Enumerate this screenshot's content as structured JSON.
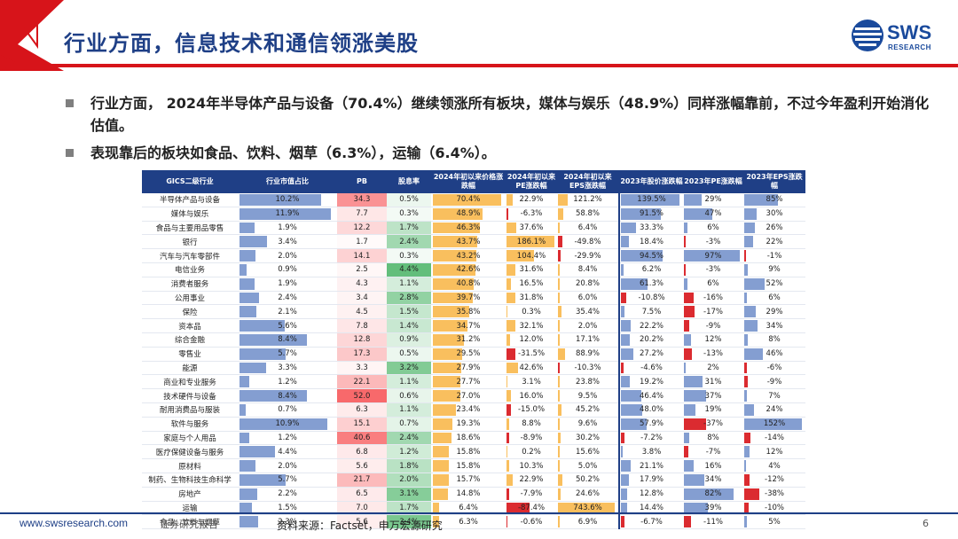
{
  "header": {
    "title": "行业方面，信息技术和通信领涨美股",
    "logo_text": "SWS",
    "logo_sub": "RESEARCH"
  },
  "bullets": [
    "行业方面， 2024年半导体产品与设备（70.4%）继续领涨所有板块，媒体与娱乐（48.9%）同样涨幅靠前，不过今年盈利开始消化估值。",
    "表现靠后的板块如食品、饮料、烟草（6.3%），运输（6.4%）。"
  ],
  "table": {
    "headers": [
      "GICS二级行业",
      "行业市值占比",
      "PB",
      "股息率",
      "2024年初以来价格涨跌幅",
      "2024年初以来PE涨跌幅",
      "2024年初以来EPS涨跌幅",
      "2023年股价涨跌幅",
      "2023年PE涨跌幅",
      "2023年EPS涨跌幅"
    ],
    "rows": [
      [
        "半导体产品与设备",
        "10.2%",
        "34.3",
        "0.5%",
        "70.4%",
        "22.9%",
        "121.2%",
        "139.5%",
        "29%",
        "85%"
      ],
      [
        "媒体与娱乐",
        "11.9%",
        "7.7",
        "0.3%",
        "48.9%",
        "-6.3%",
        "58.8%",
        "91.5%",
        "47%",
        "30%"
      ],
      [
        "食品与主要用品零售",
        "1.9%",
        "12.2",
        "1.7%",
        "46.3%",
        "37.6%",
        "6.4%",
        "33.3%",
        "6%",
        "26%"
      ],
      [
        "银行",
        "3.4%",
        "1.7",
        "2.4%",
        "43.7%",
        "186.1%",
        "-49.8%",
        "18.4%",
        "-3%",
        "22%"
      ],
      [
        "汽车与汽车零部件",
        "2.0%",
        "14.1",
        "0.3%",
        "43.2%",
        "104.4%",
        "-29.9%",
        "94.5%",
        "97%",
        "-1%"
      ],
      [
        "电信业务",
        "0.9%",
        "2.5",
        "4.4%",
        "42.6%",
        "31.6%",
        "8.4%",
        "6.2%",
        "-3%",
        "9%"
      ],
      [
        "消费者服务",
        "1.9%",
        "4.3",
        "1.1%",
        "40.8%",
        "16.5%",
        "20.8%",
        "61.3%",
        "6%",
        "52%"
      ],
      [
        "公用事业",
        "2.4%",
        "3.4",
        "2.8%",
        "39.7%",
        "31.8%",
        "6.0%",
        "-10.8%",
        "-16%",
        "6%"
      ],
      [
        "保险",
        "2.1%",
        "4.5",
        "1.5%",
        "35.8%",
        "0.3%",
        "35.4%",
        "7.5%",
        "-17%",
        "29%"
      ],
      [
        "资本品",
        "5.6%",
        "7.8",
        "1.4%",
        "34.7%",
        "32.1%",
        "2.0%",
        "22.2%",
        "-9%",
        "34%"
      ],
      [
        "综合金融",
        "8.4%",
        "12.8",
        "0.9%",
        "31.2%",
        "12.0%",
        "17.1%",
        "20.2%",
        "12%",
        "8%"
      ],
      [
        "零售业",
        "5.7%",
        "17.3",
        "0.5%",
        "29.5%",
        "-31.5%",
        "88.9%",
        "27.2%",
        "-13%",
        "46%"
      ],
      [
        "能源",
        "3.3%",
        "3.3",
        "3.2%",
        "27.9%",
        "42.6%",
        "-10.3%",
        "-4.6%",
        "2%",
        "-6%"
      ],
      [
        "商业和专业服务",
        "1.2%",
        "22.1",
        "1.1%",
        "27.7%",
        "3.1%",
        "23.8%",
        "19.2%",
        "31%",
        "-9%"
      ],
      [
        "技术硬件与设备",
        "8.4%",
        "52.0",
        "0.6%",
        "27.0%",
        "16.0%",
        "9.5%",
        "46.4%",
        "37%",
        "7%"
      ],
      [
        "耐用消费品与服装",
        "0.7%",
        "6.3",
        "1.1%",
        "23.4%",
        "-15.0%",
        "45.2%",
        "48.0%",
        "19%",
        "24%"
      ],
      [
        "软件与服务",
        "10.9%",
        "15.1",
        "0.7%",
        "19.3%",
        "8.8%",
        "9.6%",
        "57.9%",
        "-37%",
        "152%"
      ],
      [
        "家庭与个人用品",
        "1.2%",
        "40.6",
        "2.4%",
        "18.6%",
        "-8.9%",
        "30.2%",
        "-7.2%",
        "8%",
        "-14%"
      ],
      [
        "医疗保健设备与服务",
        "4.4%",
        "6.8",
        "1.2%",
        "15.8%",
        "0.2%",
        "15.6%",
        "3.8%",
        "-7%",
        "12%"
      ],
      [
        "原材料",
        "2.0%",
        "5.6",
        "1.8%",
        "15.8%",
        "10.3%",
        "5.0%",
        "21.1%",
        "16%",
        "4%"
      ],
      [
        "制药、生物科技生命科学",
        "5.7%",
        "21.7",
        "2.0%",
        "15.7%",
        "22.9%",
        "50.2%",
        "17.9%",
        "34%",
        "-12%"
      ],
      [
        "房地产",
        "2.2%",
        "6.5",
        "3.1%",
        "14.8%",
        "-7.9%",
        "24.6%",
        "12.8%",
        "82%",
        "-38%"
      ],
      [
        "运输",
        "1.5%",
        "7.0",
        "1.7%",
        "6.4%",
        "-87.4%",
        "743.6%",
        "14.4%",
        "39%",
        "-10%"
      ],
      [
        "食品、饮料与烟草",
        "2.3%",
        "5.6",
        "3.4%",
        "6.3%",
        "-0.6%",
        "6.9%",
        "-6.7%",
        "-11%",
        "5%"
      ]
    ]
  },
  "footer": {
    "url": "www.swsresearch.com",
    "report": "证券研究报告",
    "source": "资料来源：Factset，申万宏源研究",
    "page": "6"
  },
  "colors": {
    "brand": "#1e3f86",
    "accent_red": "#d7141a",
    "bar_blue": "#5b7ec2",
    "bar_orange": "#f7a928",
    "bar_green": "#63be7b",
    "bar_pink": "#f8696b"
  }
}
